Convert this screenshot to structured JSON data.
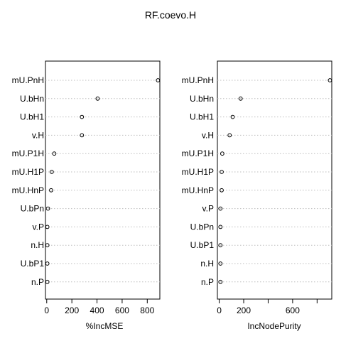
{
  "chart_data": {
    "type": "scatter",
    "title": "RF.coevo.H",
    "colors": {
      "points": "#000000",
      "grid": "#bebebe",
      "axis": "#000000",
      "background": "#ffffff"
    },
    "panels": [
      {
        "name": "incmse",
        "xlabel": "%IncMSE",
        "xlim": [
          -10,
          900
        ],
        "ticks": [
          0,
          200,
          400,
          600,
          800
        ],
        "tick_labels": [
          "0",
          "200",
          "400",
          "600",
          "800"
        ],
        "categories": [
          "mU.PnH",
          "U.bHn",
          "U.bH1",
          "v.H",
          "mU.P1H",
          "mU.H1P",
          "mU.HnP",
          "U.bPn",
          "v.P",
          "n.H",
          "U.bP1",
          "n.P"
        ],
        "values": [
          885,
          405,
          280,
          280,
          60,
          40,
          35,
          10,
          5,
          5,
          5,
          5
        ]
      },
      {
        "name": "incnodepurity",
        "xlabel": "IncNodePurity",
        "xlim": [
          -15,
          920
        ],
        "ticks": [
          0,
          200,
          400,
          600,
          800
        ],
        "tick_labels": [
          "0",
          "200",
          "",
          "600",
          ""
        ],
        "categories": [
          "mU.PnH",
          "U.bHn",
          "U.bH1",
          "v.H",
          "mU.P1H",
          "mU.H1P",
          "mU.HnP",
          "v.P",
          "U.bPn",
          "U.bP1",
          "n.H",
          "n.P"
        ],
        "values": [
          905,
          175,
          110,
          85,
          25,
          20,
          20,
          10,
          10,
          10,
          10,
          10
        ]
      }
    ]
  }
}
